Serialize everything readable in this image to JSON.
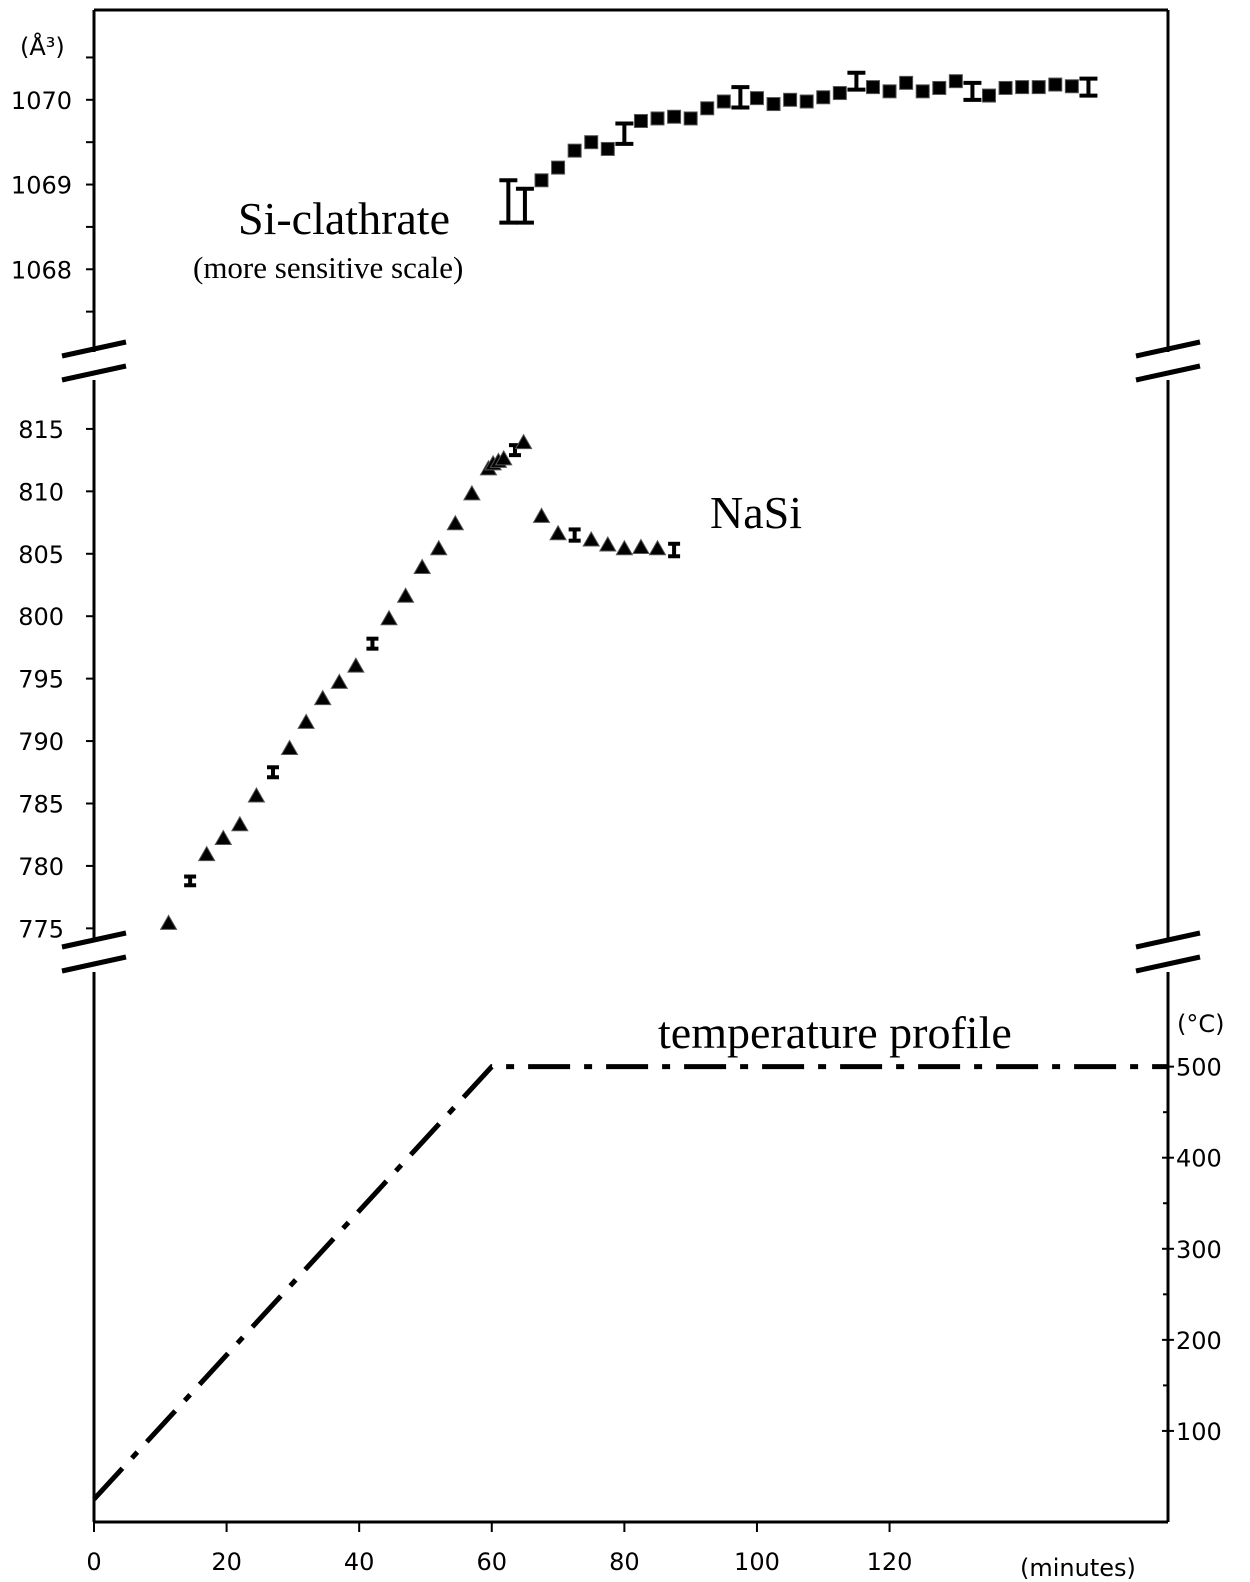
{
  "chart_data": {
    "type": "scatter",
    "x_axis": {
      "unit_label": "(minutes)",
      "ticks": [
        0,
        20,
        40,
        60,
        80,
        100,
        120
      ],
      "range": [
        0,
        162
      ]
    },
    "panels": [
      {
        "id": "si_clathrate",
        "unit_label": "(Å³)",
        "y_ticks": [
          1068,
          1069,
          1070
        ],
        "y_range": [
          1067.0,
          1071.06
        ],
        "annotation": "Si-clathrate",
        "annotation_sub": "(more sensitive scale)",
        "marker": "square",
        "series": [
          {
            "x": 62.5,
            "y": 1068.8,
            "err": 0.25
          },
          {
            "x": 65.0,
            "y": 1068.75,
            "err": 0.2
          },
          {
            "x": 67.5,
            "y": 1069.05
          },
          {
            "x": 70.0,
            "y": 1069.2
          },
          {
            "x": 72.5,
            "y": 1069.4
          },
          {
            "x": 75.0,
            "y": 1069.5
          },
          {
            "x": 77.5,
            "y": 1069.42
          },
          {
            "x": 80.0,
            "y": 1069.6,
            "err": 0.12
          },
          {
            "x": 82.5,
            "y": 1069.75
          },
          {
            "x": 85.0,
            "y": 1069.78
          },
          {
            "x": 87.5,
            "y": 1069.8
          },
          {
            "x": 90.0,
            "y": 1069.78
          },
          {
            "x": 92.5,
            "y": 1069.9
          },
          {
            "x": 95.0,
            "y": 1069.98
          },
          {
            "x": 97.5,
            "y": 1070.03,
            "err": 0.12
          },
          {
            "x": 100.0,
            "y": 1070.02
          },
          {
            "x": 102.5,
            "y": 1069.95
          },
          {
            "x": 105.0,
            "y": 1070.0
          },
          {
            "x": 107.5,
            "y": 1069.98
          },
          {
            "x": 110.0,
            "y": 1070.03
          },
          {
            "x": 112.5,
            "y": 1070.08
          },
          {
            "x": 115.0,
            "y": 1070.22,
            "err": 0.1
          },
          {
            "x": 117.5,
            "y": 1070.15
          },
          {
            "x": 120.0,
            "y": 1070.1
          },
          {
            "x": 122.5,
            "y": 1070.2
          },
          {
            "x": 125.0,
            "y": 1070.1
          },
          {
            "x": 127.5,
            "y": 1070.14
          },
          {
            "x": 130.0,
            "y": 1070.22
          },
          {
            "x": 132.5,
            "y": 1070.1,
            "err": 0.1
          },
          {
            "x": 135.0,
            "y": 1070.05
          },
          {
            "x": 137.5,
            "y": 1070.14
          },
          {
            "x": 140.0,
            "y": 1070.15
          },
          {
            "x": 142.5,
            "y": 1070.15
          },
          {
            "x": 145.0,
            "y": 1070.18
          },
          {
            "x": 147.5,
            "y": 1070.16
          },
          {
            "x": 150.0,
            "y": 1070.15,
            "err": 0.1
          }
        ]
      },
      {
        "id": "nasi",
        "y_ticks": [
          775,
          780,
          785,
          790,
          795,
          800,
          805,
          810,
          815
        ],
        "y_range": [
          768.3,
          821.0
        ],
        "annotation": "NaSi",
        "marker": "triangle",
        "series": [
          {
            "x": 11.25,
            "y": 775.4
          },
          {
            "x": 14.5,
            "y": 778.8,
            "err": 0.35
          },
          {
            "x": 17.0,
            "y": 780.9
          },
          {
            "x": 19.5,
            "y": 782.2
          },
          {
            "x": 22.0,
            "y": 783.3
          },
          {
            "x": 24.5,
            "y": 785.6
          },
          {
            "x": 27.0,
            "y": 787.5,
            "err": 0.4
          },
          {
            "x": 29.5,
            "y": 789.4
          },
          {
            "x": 32.0,
            "y": 791.5
          },
          {
            "x": 34.5,
            "y": 793.4
          },
          {
            "x": 37.0,
            "y": 794.7
          },
          {
            "x": 39.5,
            "y": 796.0
          },
          {
            "x": 42.0,
            "y": 797.8,
            "err": 0.4
          },
          {
            "x": 44.5,
            "y": 799.8
          },
          {
            "x": 47.0,
            "y": 801.6
          },
          {
            "x": 49.5,
            "y": 803.9
          },
          {
            "x": 52.0,
            "y": 805.4
          },
          {
            "x": 54.5,
            "y": 807.4
          },
          {
            "x": 57.0,
            "y": 809.8
          },
          {
            "x": 59.5,
            "y": 811.8
          },
          {
            "x": 60.2,
            "y": 812.2
          },
          {
            "x": 61.0,
            "y": 812.4
          },
          {
            "x": 61.8,
            "y": 812.6
          },
          {
            "x": 63.5,
            "y": 813.3,
            "err": 0.4
          },
          {
            "x": 64.8,
            "y": 813.9
          },
          {
            "x": 67.5,
            "y": 808.0
          },
          {
            "x": 70.0,
            "y": 806.6
          },
          {
            "x": 72.5,
            "y": 806.5,
            "err": 0.45
          },
          {
            "x": 75.0,
            "y": 806.1
          },
          {
            "x": 77.5,
            "y": 805.7
          },
          {
            "x": 80.0,
            "y": 805.4
          },
          {
            "x": 82.5,
            "y": 805.5
          },
          {
            "x": 85.0,
            "y": 805.4
          },
          {
            "x": 87.5,
            "y": 805.3,
            "err": 0.5
          }
        ]
      },
      {
        "id": "temperature_profile",
        "unit_label": "(°C)",
        "y_ticks": [
          100,
          200,
          300,
          400,
          500
        ],
        "y_range": [
          0,
          560
        ],
        "annotation": "temperature profile",
        "line_style": "dash-dot",
        "series": [
          {
            "x": 0,
            "y": 25
          },
          {
            "x": 60,
            "y": 500
          },
          {
            "x": 162,
            "y": 500
          }
        ]
      }
    ],
    "axis_break_symbol": "//",
    "grid": false
  }
}
